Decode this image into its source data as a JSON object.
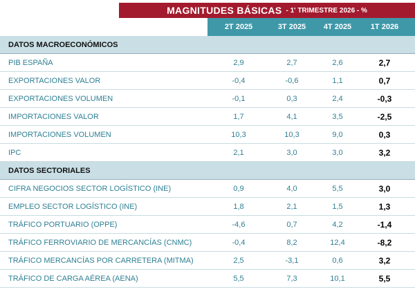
{
  "header": {
    "title": "MAGNITUDES BÁSICAS",
    "subtitle": "- 1' TRIMESTRE 2026 - %"
  },
  "table": {
    "columns": [
      "2T 2025",
      "3T 2025",
      "4T 2025",
      "1T 2026"
    ],
    "sections": [
      {
        "name": "DATOS MACROECONÓMICOS",
        "rows": [
          {
            "label": "PIB ESPAÑA",
            "values": [
              "2,9",
              "2,7",
              "2,6",
              "2,7"
            ]
          },
          {
            "label": "EXPORTACIONES VALOR",
            "values": [
              "-0,4",
              "-0,6",
              "1,1",
              "0,7"
            ]
          },
          {
            "label": "EXPORTACIONES VOLUMEN",
            "values": [
              "-0,1",
              "0,3",
              "2,4",
              "-0,3"
            ]
          },
          {
            "label": "IMPORTACIONES VALOR",
            "values": [
              "1,7",
              "4,1",
              "3,5",
              "-2,5"
            ]
          },
          {
            "label": "IMPORTACIONES VOLUMEN",
            "values": [
              "10,3",
              "10,3",
              "9,0",
              "0,3"
            ]
          },
          {
            "label": "IPC",
            "values": [
              "2,1",
              "3,0",
              "3,0",
              "3,2"
            ]
          }
        ]
      },
      {
        "name": "DATOS SECTORIALES",
        "rows": [
          {
            "label": "CIFRA NEGOCIOS SECTOR LOGÍSTICO (INE)",
            "values": [
              "0,9",
              "4,0",
              "5,5",
              "3,0"
            ]
          },
          {
            "label": "EMPLEO SECTOR LOGÍSTICO (INE)",
            "values": [
              "1,8",
              "2,1",
              "1,5",
              "1,3"
            ]
          },
          {
            "label": "TRÁFICO PORTUARIO (OPPE)",
            "values": [
              "-4,6",
              "0,7",
              "4,2",
              "-1,4"
            ]
          },
          {
            "label": "TRÁFICO FERROVIARIO DE MERCANCÍAS (CNMC)",
            "values": [
              "-0,4",
              "8,2",
              "12,4",
              "-8,2"
            ]
          },
          {
            "label": "TRÁFICO MERCANCÍAS POR CARRETERA (MITMA)",
            "values": [
              "2,5",
              "-3,1",
              "0,6",
              "3,2"
            ]
          },
          {
            "label": "TRÁFICO DE CARGA AÉREA (AENA)",
            "values": [
              "5,5",
              "7,3",
              "10,1",
              "5,5"
            ]
          }
        ]
      }
    ]
  }
}
